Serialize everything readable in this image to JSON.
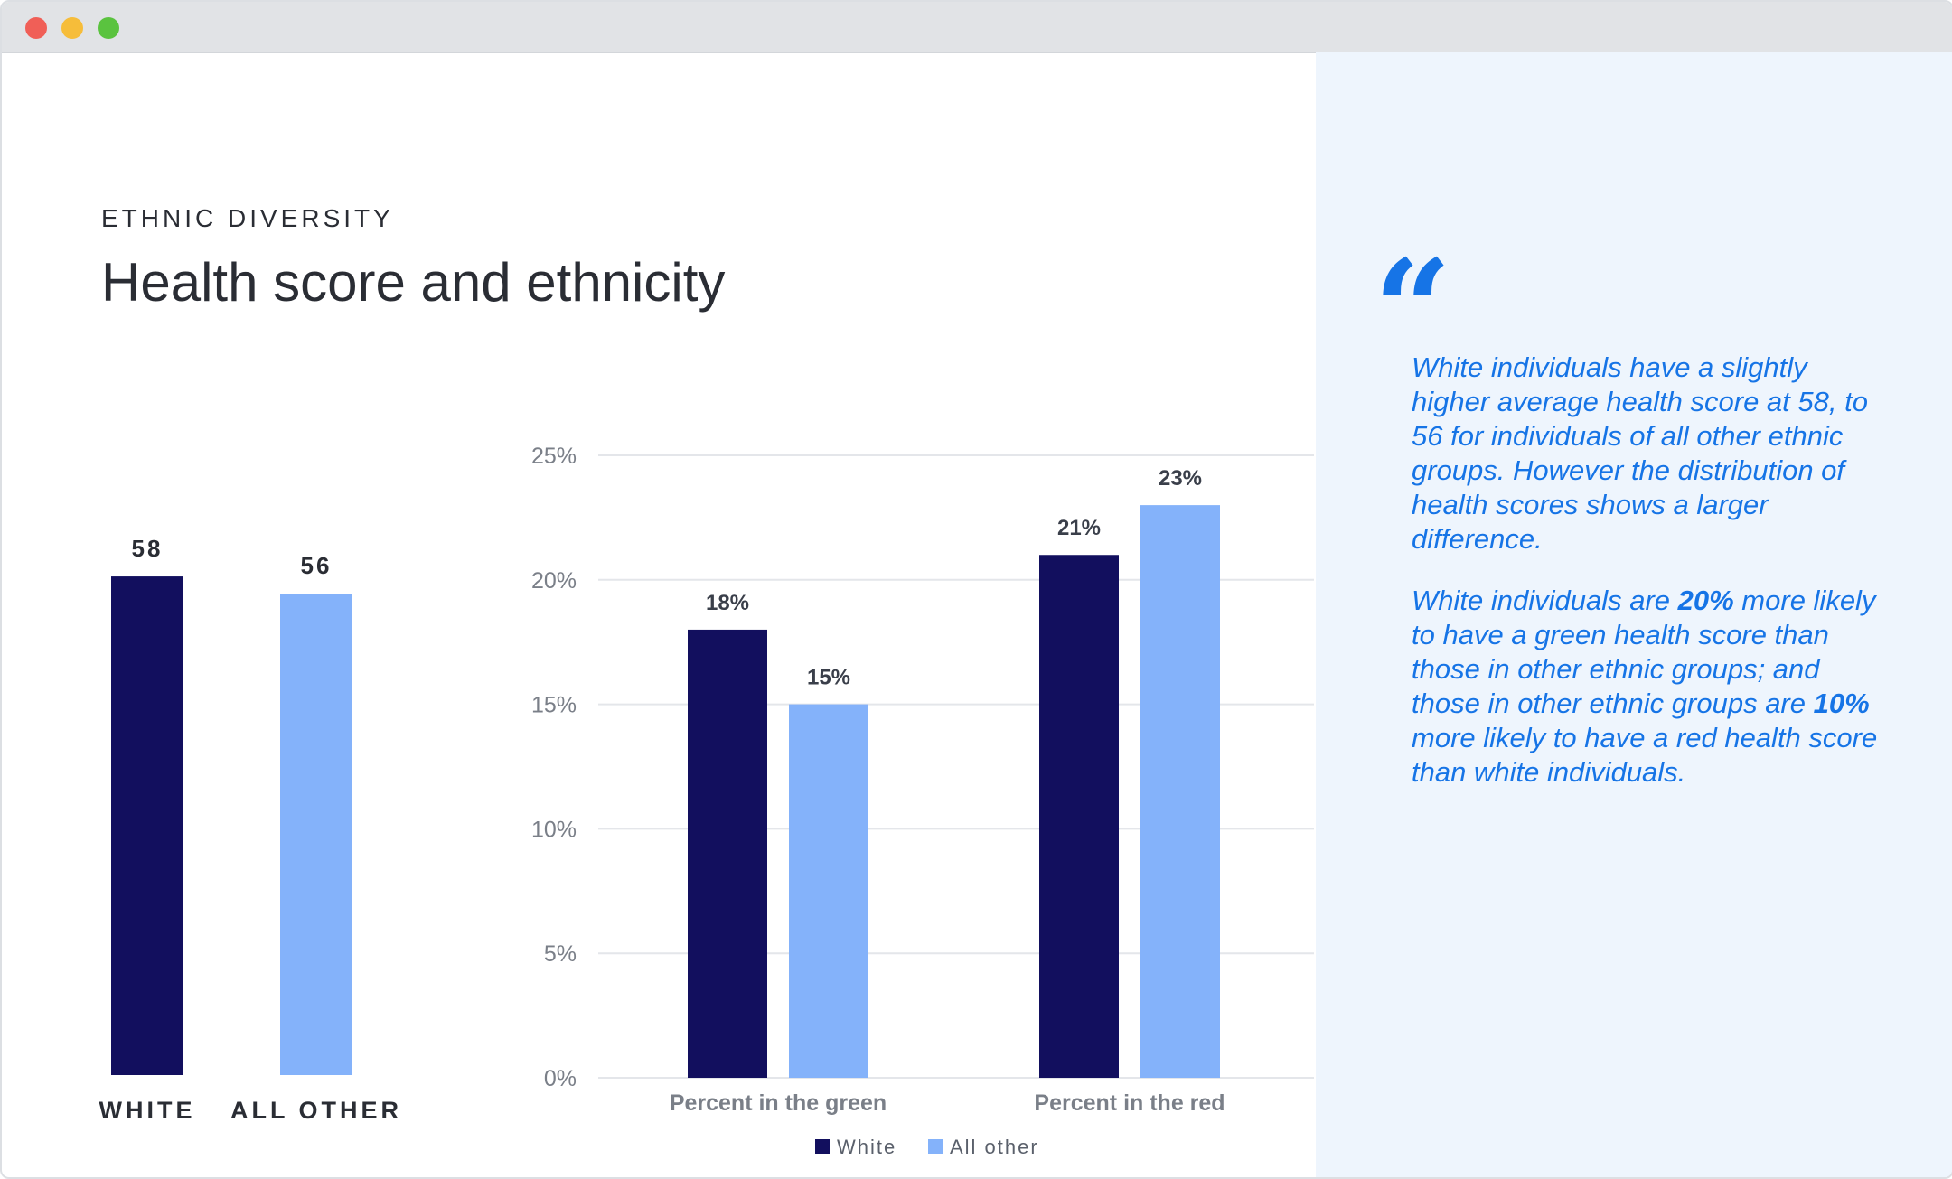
{
  "header": {
    "eyebrow": "ETHNIC DIVERSITY",
    "title": "Health score and ethnicity"
  },
  "colors": {
    "white_series": "#120f5e",
    "other_series": "#84b2fa",
    "accent": "#1674e6",
    "sidebar_bg": "#eef5fd"
  },
  "chart_data": [
    {
      "type": "bar",
      "categories": [
        "WHITE",
        "ALL OTHER"
      ],
      "values": [
        58,
        56
      ],
      "data_labels": [
        "58",
        "56"
      ],
      "colors": [
        "#120f5e",
        "#84b2fa"
      ],
      "ylim": [
        0,
        70
      ]
    },
    {
      "type": "bar",
      "categories": [
        "Percent in the green",
        "Percent in the red"
      ],
      "series": [
        {
          "name": "White",
          "values": [
            18,
            21
          ],
          "labels": [
            "18%",
            "21%"
          ],
          "color": "#120f5e"
        },
        {
          "name": "All other",
          "values": [
            15,
            23
          ],
          "labels": [
            "15%",
            "23%"
          ],
          "color": "#84b2fa"
        }
      ],
      "yticks": [
        "0%",
        "5%",
        "10%",
        "15%",
        "20%",
        "25%"
      ],
      "ylim": [
        0,
        25
      ],
      "grid": true,
      "legend": "bottom-center"
    }
  ],
  "sidebar": {
    "quote_icon": "quote-icon",
    "paragraph1": "White individuals have a slightly higher average health score at 58, to 56 for individuals of all other ethnic groups. However the distribution of health scores shows a larger difference.",
    "p2_a": "White individuals are ",
    "p2_b": "20%",
    "p2_c": " more likely to have a green health score than those in other ethnic groups; and those in other ethnic groups are ",
    "p2_d": "10%",
    "p2_e": " more likely to have a red health score than white individuals."
  }
}
